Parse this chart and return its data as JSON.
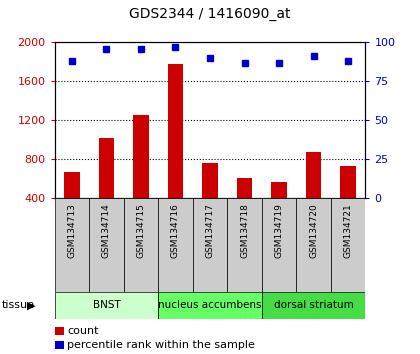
{
  "title": "GDS2344 / 1416090_at",
  "samples": [
    "GSM134713",
    "GSM134714",
    "GSM134715",
    "GSM134716",
    "GSM134717",
    "GSM134718",
    "GSM134719",
    "GSM134720",
    "GSM134721"
  ],
  "counts": [
    670,
    1020,
    1260,
    1780,
    760,
    610,
    570,
    870,
    735
  ],
  "percentiles": [
    88,
    96,
    96,
    97,
    90,
    87,
    87,
    91,
    88
  ],
  "ylim_left": [
    400,
    2000
  ],
  "ylim_right": [
    0,
    100
  ],
  "yticks_left": [
    400,
    800,
    1200,
    1600,
    2000
  ],
  "yticks_right": [
    0,
    25,
    50,
    75,
    100
  ],
  "bar_color": "#cc0000",
  "dot_color": "#0000cc",
  "tissue_groups": [
    {
      "label": "BNST",
      "start": 0,
      "end": 3,
      "color": "#ccffcc"
    },
    {
      "label": "nucleus accumbens",
      "start": 3,
      "end": 6,
      "color": "#66ff66"
    },
    {
      "label": "dorsal striatum",
      "start": 6,
      "end": 9,
      "color": "#44dd44"
    }
  ],
  "tissue_label": "tissue",
  "legend_count": "count",
  "legend_percentile": "percentile rank within the sample",
  "tick_label_color_left": "#cc0000",
  "tick_label_color_right": "#0000cc",
  "sample_box_color": "#cccccc",
  "bar_width": 0.45,
  "dot_size": 5
}
